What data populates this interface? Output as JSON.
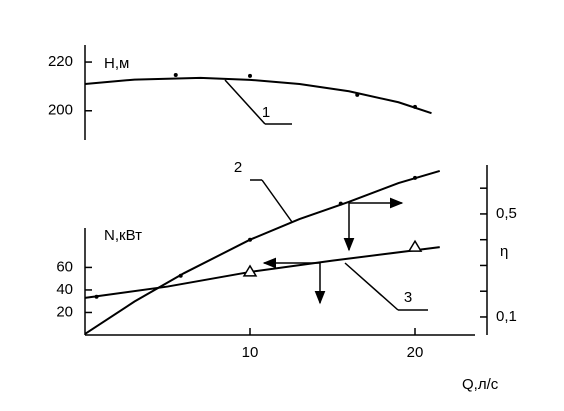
{
  "chart_data": [
    {
      "type": "line",
      "ylabel": "Н,м",
      "xlim": [
        0,
        24
      ],
      "ylim": [
        188,
        227
      ],
      "yticks": [
        200,
        220
      ],
      "series": [
        {
          "name": "1",
          "color": "#000000",
          "x": [
            0,
            3,
            7,
            10,
            13,
            16,
            19,
            21
          ],
          "values": [
            211,
            212.8,
            213.5,
            212.7,
            211,
            208,
            203.5,
            199
          ]
        },
        {
          "color": "#000000",
          "marker": "dot",
          "x": [
            5.5,
            10,
            16.5,
            20
          ],
          "values": [
            214.7,
            214.3,
            206.5,
            201.6
          ]
        }
      ]
    },
    {
      "type": "line",
      "xlabel": "Q,л/с",
      "ylabel": "N,кВт",
      "y2label": "η",
      "xlim": [
        0,
        24
      ],
      "xticks": [
        10,
        20
      ],
      "ylim": [
        0,
        95
      ],
      "yticks": [
        20,
        40,
        60
      ],
      "y2lim": [
        0.03,
        0.69
      ],
      "y2ticks": [
        {
          "value": 0.1,
          "label": "0,1"
        },
        {
          "value": 0.5,
          "label": "0,5"
        }
      ],
      "y2minorticks": [
        0.2,
        0.3,
        0.4,
        0.6
      ],
      "series": [
        {
          "name": "2",
          "color": "#000000",
          "axis": "y2",
          "x": [
            0,
            3,
            6,
            10,
            13,
            16,
            19,
            21.5
          ],
          "values": [
            0.034,
            0.16,
            0.27,
            0.4,
            0.48,
            0.547,
            0.62,
            0.667
          ]
        },
        {
          "name": "3",
          "color": "#000000",
          "x": [
            0,
            5,
            10,
            15,
            21.5
          ],
          "values": [
            33,
            43,
            56,
            66,
            78
          ]
        },
        {
          "color": "#000000",
          "axis": "y2",
          "marker": "dot",
          "x": [
            5.8,
            10,
            15.5,
            20
          ],
          "values": [
            0.26,
            0.4,
            0.54,
            0.64
          ]
        },
        {
          "color": "#000000",
          "marker": "dot",
          "x": [
            0.7
          ],
          "values": [
            34
          ]
        },
        {
          "color": "#000000",
          "marker": "triangle",
          "x": [
            10,
            20
          ],
          "values": [
            56,
            78
          ]
        }
      ]
    }
  ]
}
